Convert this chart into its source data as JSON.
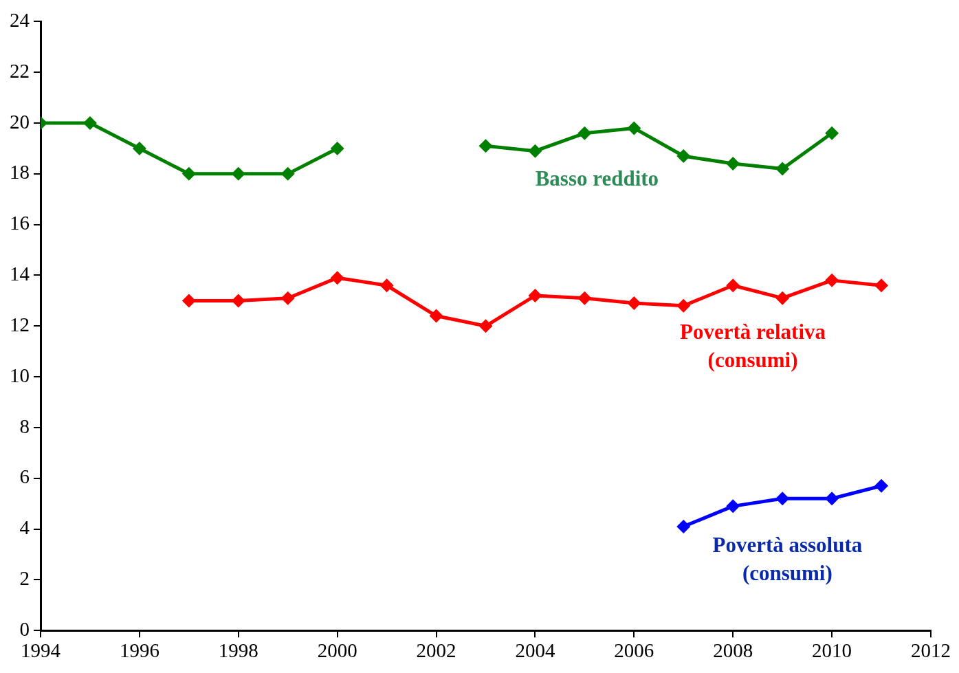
{
  "chart_data": {
    "type": "line",
    "x": [
      1994,
      1995,
      1996,
      1997,
      1998,
      1999,
      2000,
      2001,
      2002,
      2003,
      2004,
      2005,
      2006,
      2007,
      2008,
      2009,
      2010,
      2011
    ],
    "series": [
      {
        "name": "Basso reddito",
        "color": "#008000",
        "values": [
          20,
          20,
          19,
          18,
          18,
          18,
          19,
          null,
          null,
          19.1,
          18.9,
          19.6,
          19.8,
          18.7,
          18.4,
          18.2,
          19.6,
          null
        ]
      },
      {
        "name": "Povertà relativa (consumi)",
        "color": "#ff0000",
        "values": [
          null,
          null,
          null,
          13,
          13,
          13.1,
          13.9,
          13.6,
          12.4,
          12,
          13.2,
          13.1,
          12.9,
          12.8,
          13.6,
          13.1,
          13.8,
          13.6
        ]
      },
      {
        "name": "Povertà assoluta (consumi)",
        "color": "#0000ff",
        "values": [
          null,
          null,
          null,
          null,
          null,
          null,
          null,
          null,
          null,
          null,
          null,
          null,
          null,
          4.1,
          4.9,
          5.2,
          5.2,
          5.7
        ]
      }
    ],
    "xlim": [
      1994,
      2012
    ],
    "xticks": [
      1994,
      1996,
      1998,
      2000,
      2002,
      2004,
      2006,
      2008,
      2010,
      2012
    ],
    "ylim": [
      0,
      24
    ],
    "yticks": [
      0,
      2,
      4,
      6,
      8,
      10,
      12,
      14,
      16,
      18,
      20,
      22,
      24
    ],
    "grid": false,
    "legend": false,
    "marker": "diamond",
    "line_style": "solid"
  }
}
